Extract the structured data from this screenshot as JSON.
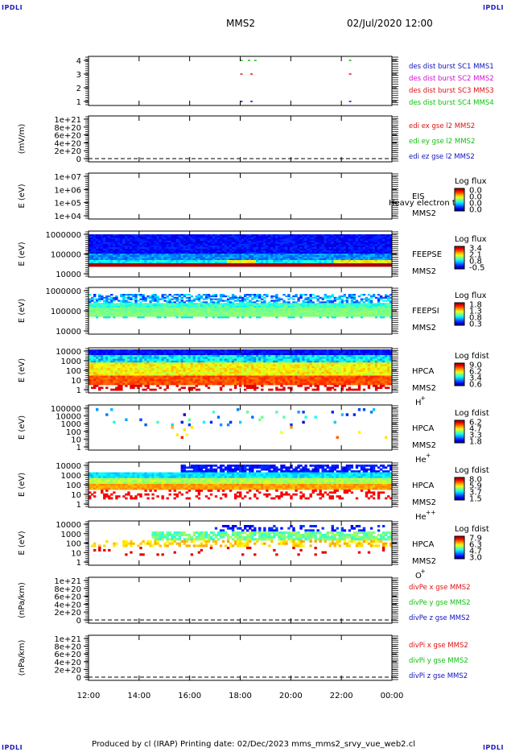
{
  "header": {
    "corner_label": "IPDLI",
    "mission": "MMS2",
    "datetime": "02/Jul/2020 12:00"
  },
  "footer": {
    "text": "Produced by cl (IRAP)    Printing date: 02/Dec/2023    mms_mms2_srvy_vue_web2.cl"
  },
  "colors": {
    "red": "#e01010",
    "magenta": "#d010d0",
    "green": "#10c010",
    "blue": "#1010c0",
    "spectrum_start": "#00007f",
    "spectrum_end": "#7f0000"
  },
  "chart_data": {
    "type": "line",
    "x_ticks": [
      "12:00",
      "14:00",
      "16:00",
      "18:00",
      "20:00",
      "22:00",
      "00:00"
    ],
    "xlim_hours": [
      12,
      24
    ],
    "panels": [
      {
        "id": "des_dist",
        "yticks": [
          "4",
          "3",
          "2",
          "1"
        ],
        "legend": [
          {
            "text": "des dist burst SC1 MMS1",
            "color": "blue"
          },
          {
            "text": "des dist burst SC2 MMS2",
            "color": "magenta"
          },
          {
            "text": "des dist burst SC3 MMS3",
            "color": "red"
          },
          {
            "text": "des dist burst SC4 MMS4",
            "color": "green"
          }
        ],
        "bursts": [
          {
            "level": 4,
            "t": [
              18.0,
              18.3,
              18.55,
              22.3
            ],
            "color": "green"
          },
          {
            "level": 3,
            "t": [
              18.0,
              18.4,
              22.3
            ],
            "color": "red"
          },
          {
            "level": 1,
            "t": [
              18.0,
              18.4,
              22.3
            ],
            "color": "blue"
          }
        ]
      },
      {
        "id": "edi",
        "ylabel": "(mV/m)",
        "yticks": [
          "1e+21",
          "8e+20",
          "6e+20",
          "4e+20",
          "2e+20",
          "0"
        ],
        "legend": [
          {
            "text": "edi ex gse l2 MMS2",
            "color": "red"
          },
          {
            "text": "edi ey gse l2 MMS2",
            "color": "green"
          },
          {
            "text": "edi ez gse l2 MMS2",
            "color": "blue"
          }
        ]
      },
      {
        "id": "eis",
        "ylabel": "E (eV)",
        "yticks": [
          "1e+07",
          "1e+06",
          "1e+05",
          "1e+04"
        ],
        "instrument": "EIS",
        "overlay_text": "Heavy electron to",
        "mission": "MMS2",
        "cbar_title": "Log flux",
        "cbar_ticks": [
          "0.0",
          "0.0",
          "0.0",
          "0.0"
        ]
      },
      {
        "id": "feepse",
        "ylabel": "E (eV)",
        "yticks": [
          "1000000",
          "100000",
          "10000"
        ],
        "instrument": "FEEPSE",
        "mission": "MMS2",
        "cbar_title": "Log flux",
        "cbar_ticks": [
          "3.4",
          "2.1",
          "0.8",
          "-0.5"
        ]
      },
      {
        "id": "feepsi",
        "ylabel": "E (eV)",
        "yticks": [
          "1000000",
          "100000",
          "10000"
        ],
        "instrument": "FEEPSI",
        "mission": "MMS2",
        "cbar_title": "Log flux",
        "cbar_ticks": [
          "1.8",
          "1.3",
          "0.8",
          "0.3"
        ]
      },
      {
        "id": "hpca_h",
        "ylabel": "E (eV)",
        "yticks": [
          "10000",
          "1000",
          "100",
          "10",
          "1"
        ],
        "instrument": "HPCA",
        "mission": "MMS2",
        "species": "H",
        "charge": "+",
        "cbar_title": "Log fdist",
        "cbar_ticks": [
          "9.0",
          "6.2",
          "3.4",
          "0.6"
        ]
      },
      {
        "id": "hpca_he",
        "ylabel": "E (eV)",
        "yticks": [
          "100000",
          "10000",
          "1000",
          "100",
          "10",
          "1"
        ],
        "instrument": "HPCA",
        "mission": "MMS2",
        "species": "He",
        "charge": "+",
        "cbar_title": "Log fdist",
        "cbar_ticks": [
          "6.2",
          "4.7",
          "3.3",
          "1.8"
        ]
      },
      {
        "id": "hpca_hepp",
        "ylabel": "E (eV)",
        "yticks": [
          "10000",
          "1000",
          "100",
          "10",
          "1"
        ],
        "instrument": "HPCA",
        "mission": "MMS2",
        "species": "He",
        "charge": "++",
        "cbar_title": "Log fdist",
        "cbar_ticks": [
          "8.0",
          "5.9",
          "3.7",
          "1.5"
        ]
      },
      {
        "id": "hpca_o",
        "ylabel": "E (eV)",
        "yticks": [
          "10000",
          "1000",
          "100",
          "10",
          "1"
        ],
        "instrument": "HPCA",
        "mission": "MMS2",
        "species": "O",
        "charge": "+",
        "cbar_title": "Log fdist",
        "cbar_ticks": [
          "7.9",
          "6.3",
          "4.7",
          "3.0"
        ]
      },
      {
        "id": "divpe",
        "ylabel": "(nPa/km)",
        "yticks": [
          "1e+21",
          "8e+20",
          "6e+20",
          "4e+20",
          "2e+20",
          "0"
        ],
        "legend": [
          {
            "text": "divPe x gse MMS2",
            "color": "red"
          },
          {
            "text": "divPe y gse MMS2",
            "color": "green"
          },
          {
            "text": "divPe z gse MMS2",
            "color": "blue"
          }
        ]
      },
      {
        "id": "divpi",
        "ylabel": "(nPa/km)",
        "yticks": [
          "1e+21",
          "8e+20",
          "6e+20",
          "4e+20",
          "2e+20",
          "0"
        ],
        "legend": [
          {
            "text": "divPi x gse MMS2",
            "color": "red"
          },
          {
            "text": "divPi y gse MMS2",
            "color": "green"
          },
          {
            "text": "divPi z gse MMS2",
            "color": "blue"
          }
        ]
      }
    ]
  }
}
